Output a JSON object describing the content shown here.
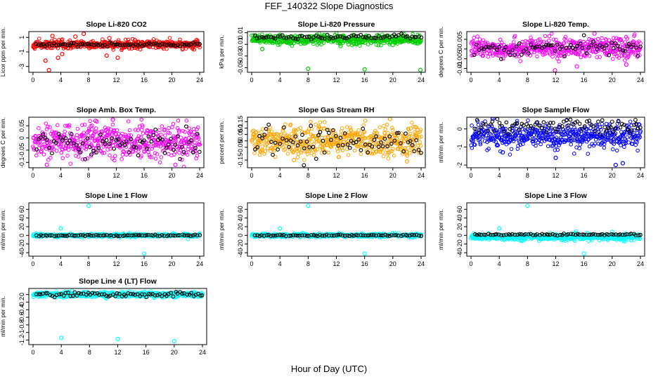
{
  "figure": {
    "title": "FEF_140322  Slope Diagnostics",
    "xlabel": "Hour of Day (UTC)"
  },
  "chart_data": [
    {
      "type": "scatter",
      "title": "Slope Li-820 CO2",
      "ylabel": "Licor ppm per min.",
      "color": "#ff0000",
      "ylim": [
        -3.8,
        1.8
      ],
      "yticks": [
        1,
        -1,
        -3
      ],
      "xticks": [
        0,
        4,
        8,
        12,
        16,
        20,
        24
      ],
      "xlim": [
        -0.6,
        24.6
      ],
      "dense": {
        "center": 0.0,
        "spread": 0.28,
        "outliers": [
          [
            2.3,
            -3.5
          ],
          [
            7.3,
            1.5
          ],
          [
            1.8,
            -2.2
          ],
          [
            2.8,
            1.2
          ],
          [
            10.6,
            -1.5
          ],
          [
            12.2,
            -1.8
          ],
          [
            3.6,
            -1.8
          ],
          [
            4.2,
            -1.3
          ],
          [
            6.1,
            1.1
          ],
          [
            11.0,
            0.9
          ]
        ]
      },
      "ref": {
        "center": 0.0,
        "spread": 0.1
      }
    },
    {
      "type": "scatter",
      "title": "Slope Li-820 Pressure",
      "ylabel": "kPa per min.",
      "color": "#00cc00",
      "ylim": [
        -0.058,
        0.012
      ],
      "yticks": [
        0.01,
        -0.01,
        -0.03,
        -0.05
      ],
      "xticks": [
        0,
        4,
        8,
        12,
        16,
        20,
        24
      ],
      "xlim": [
        -0.6,
        24.6
      ],
      "dense": {
        "center": -0.002,
        "spread": 0.004,
        "outliers": [
          [
            8.0,
            -0.052
          ],
          [
            16.0,
            -0.053
          ],
          [
            23.9,
            -0.054
          ],
          [
            1.5,
            -0.018
          ],
          [
            12.6,
            -0.013
          ],
          [
            20.0,
            -0.011
          ]
        ]
      },
      "ref": {
        "center": 0.003,
        "spread": 0.002
      }
    },
    {
      "type": "scatter",
      "title": "Slope Li-820 Temp.",
      "ylabel": "degrees C per min.",
      "color": "#ff00ff",
      "ylim": [
        -0.012,
        0.009
      ],
      "yticks": [
        0.005,
        0.0,
        -0.005,
        -0.01
      ],
      "xticks": [
        0,
        4,
        8,
        12,
        16,
        20,
        24
      ],
      "xlim": [
        -0.6,
        24.6
      ],
      "dense": {
        "center": 0.0005,
        "spread": 0.0025,
        "outliers": [
          [
            11.9,
            -0.011
          ],
          [
            17.5,
            0.008
          ],
          [
            22.0,
            -0.008
          ],
          [
            15.0,
            -0.009
          ]
        ]
      },
      "ref": {
        "center": 0.0005,
        "spread": 0.002
      }
    },
    {
      "type": "scatter",
      "title": "Slope Amb. Box Temp.",
      "ylabel": "degrees C per min.",
      "color": "#ff00ff",
      "ylim": [
        -0.122,
        0.085
      ],
      "yticks": [
        0.05,
        0.0,
        -0.05,
        -0.1
      ],
      "xticks": [
        0,
        4,
        8,
        12,
        16,
        20,
        24
      ],
      "xlim": [
        -0.6,
        24.6
      ],
      "dense": {
        "center": -0.015,
        "spread": 0.035,
        "outliers": [
          [
            11.5,
            0.075
          ],
          [
            2.0,
            -0.11
          ],
          [
            20.5,
            -0.11
          ],
          [
            9.0,
            0.07
          ]
        ]
      },
      "ref": {
        "center": -0.015,
        "spread": 0.03
      }
    },
    {
      "type": "scatter",
      "title": "Slope Gas Stream RH",
      "ylabel": "percent per min.",
      "color": "#ffa500",
      "ylim": [
        -0.21,
        0.185
      ],
      "yticks": [
        0.15,
        0.1,
        0.05,
        0.0,
        -0.05,
        -0.15
      ],
      "xticks": [
        0,
        4,
        8,
        12,
        16,
        20,
        24
      ],
      "xlim": [
        -0.6,
        24.6
      ],
      "dense": {
        "center": 0.0,
        "spread": 0.055,
        "outliers": [
          [
            19.6,
            0.17
          ],
          [
            22.0,
            -0.16
          ],
          [
            6.0,
            -0.15
          ]
        ]
      },
      "ref": {
        "center": 0.0,
        "spread": 0.05,
        "outliers": [
          [
            7.4,
            -0.19
          ]
        ]
      }
    },
    {
      "type": "scatter",
      "title": "Slope Sample Flow",
      "ylabel": "ml/min per min.",
      "color": "#0000ff",
      "ylim": [
        -2.15,
        0.65
      ],
      "yticks": [
        0.0,
        -1.0,
        -2.0
      ],
      "xticks": [
        0,
        4,
        8,
        12,
        16,
        20,
        24
      ],
      "xlim": [
        -0.6,
        24.6
      ],
      "dense": {
        "center": -0.4,
        "spread": 0.35,
        "outliers": [
          [
            20.5,
            -2.0
          ],
          [
            21.5,
            -1.9
          ],
          [
            4.5,
            -1.3
          ],
          [
            12.0,
            -1.6
          ]
        ]
      },
      "ref": {
        "center": 0.15,
        "spread": 0.2,
        "outliers": [
          [
            23.3,
            0.5
          ],
          [
            20.0,
            0.4
          ]
        ]
      }
    },
    {
      "type": "scatter",
      "title": "Slope Line 1 Flow",
      "ylabel": "ml/min per min.",
      "color": "#00ffff",
      "ylim": [
        -48,
        75
      ],
      "yticks": [
        60,
        40,
        20,
        0,
        -20,
        -40
      ],
      "xticks": [
        0,
        4,
        8,
        12,
        16,
        20,
        24
      ],
      "xlim": [
        -0.6,
        24.6
      ],
      "dense": {
        "center": 0.0,
        "spread": 1.8,
        "outliers": [
          [
            8.0,
            68
          ],
          [
            16.0,
            -42
          ],
          [
            4.0,
            16
          ]
        ]
      },
      "ref": {
        "center": 0.0,
        "spread": 0.8
      }
    },
    {
      "type": "scatter",
      "title": "Slope Line 2 Flow",
      "ylabel": "ml/min per min.",
      "color": "#00ffff",
      "ylim": [
        -48,
        75
      ],
      "yticks": [
        60,
        40,
        20,
        0,
        -20,
        -40
      ],
      "xticks": [
        0,
        4,
        8,
        12,
        16,
        20,
        24
      ],
      "xlim": [
        -0.6,
        24.6
      ],
      "dense": {
        "center": 0.0,
        "spread": 2.0,
        "outliers": [
          [
            8.0,
            68
          ],
          [
            16.0,
            -42
          ],
          [
            4.0,
            16
          ]
        ]
      },
      "ref": {
        "center": 0.0,
        "spread": 0.8
      }
    },
    {
      "type": "scatter",
      "title": "Slope Line 3 Flow",
      "ylabel": "ml/min per min.",
      "color": "#00ffff",
      "ylim": [
        -48,
        75
      ],
      "yticks": [
        60,
        40,
        20,
        0,
        -20,
        -40
      ],
      "xticks": [
        0,
        4,
        8,
        12,
        16,
        20,
        24
      ],
      "xlim": [
        -0.6,
        24.6
      ],
      "dense": {
        "center": -4.0,
        "spread": 3.5,
        "outliers": [
          [
            8.0,
            68
          ],
          [
            16.0,
            -42
          ],
          [
            4.0,
            16
          ],
          [
            20.0,
            8
          ]
        ]
      },
      "ref": {
        "center": 2.0,
        "spread": 1.0
      }
    },
    {
      "type": "scatter",
      "title": "Slope Line 4 (LT) Flow",
      "ylabel": "ml/min per min.",
      "color": "#00ffff",
      "ylim": [
        -1.32,
        0.16
      ],
      "yticks": [
        0.0,
        -0.2,
        -0.4,
        -0.6,
        -0.8,
        -1.0,
        -1.2
      ],
      "xticks": [
        0,
        4,
        8,
        12,
        16,
        20,
        24
      ],
      "xlim": [
        -0.6,
        24.6
      ],
      "dense": {
        "center": 0.0,
        "spread": 0.035,
        "outliers": [
          [
            4.0,
            -1.14
          ],
          [
            12.0,
            -1.17
          ],
          [
            20.0,
            -1.23
          ]
        ]
      },
      "ref": {
        "center": 0.0,
        "spread": 0.03
      }
    }
  ]
}
